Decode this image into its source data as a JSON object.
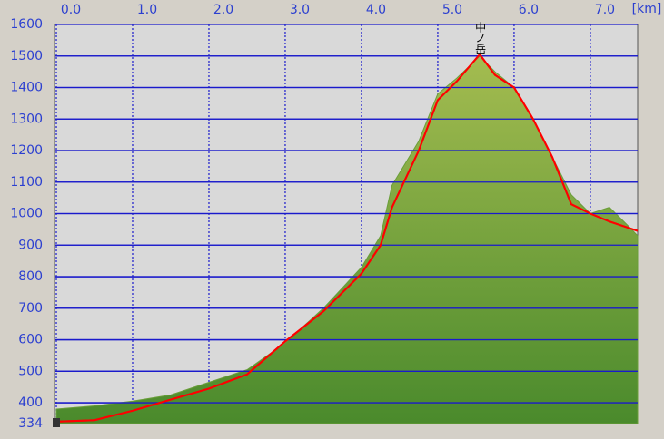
{
  "chart_data": {
    "type": "area",
    "x_label": "[km]",
    "x": [
      0,
      0.5,
      1.0,
      1.5,
      2.0,
      2.5,
      3.0,
      3.5,
      4.0,
      4.25,
      4.4,
      4.75,
      5.0,
      5.25,
      5.55,
      5.75,
      6.0,
      6.25,
      6.5,
      6.75,
      7.0,
      7.25,
      7.5,
      7.62
    ],
    "series": [
      {
        "color": "#6a9e3a",
        "fill": true,
        "values": [
          380,
          390,
          405,
          425,
          465,
          505,
          590,
          700,
          830,
          930,
          1090,
          1230,
          1380,
          1430,
          1500,
          1450,
          1400,
          1300,
          1180,
          1060,
          1000,
          1020,
          960,
          930
        ]
      },
      {
        "color": "#ff0000",
        "fill": false,
        "values": [
          340,
          345,
          375,
          410,
          445,
          490,
          595,
          690,
          810,
          900,
          1020,
          1200,
          1360,
          1420,
          1505,
          1440,
          1400,
          1300,
          1180,
          1030,
          1000,
          975,
          955,
          945
        ]
      }
    ],
    "xlim": [
      0,
      7.62
    ],
    "xticks": [
      {
        "value": 0,
        "label": "0.0"
      },
      {
        "value": 1,
        "label": "1.0"
      },
      {
        "value": 2,
        "label": "2.0"
      },
      {
        "value": 3,
        "label": "3.0"
      },
      {
        "value": 4,
        "label": "4.0"
      },
      {
        "value": 5,
        "label": "5.0"
      },
      {
        "value": 6,
        "label": "6.0"
      },
      {
        "value": 7,
        "label": "7.0"
      }
    ],
    "ylim": [
      334,
      1600
    ],
    "yticks": [
      334,
      400,
      500,
      600,
      700,
      800,
      900,
      1000,
      1100,
      1200,
      1300,
      1400,
      1500,
      1600
    ],
    "grid": true,
    "grid_color": "#1a1acc",
    "annotations": [
      {
        "text": "中ノ岳",
        "x": 5.55,
        "y": 1505
      }
    ]
  }
}
